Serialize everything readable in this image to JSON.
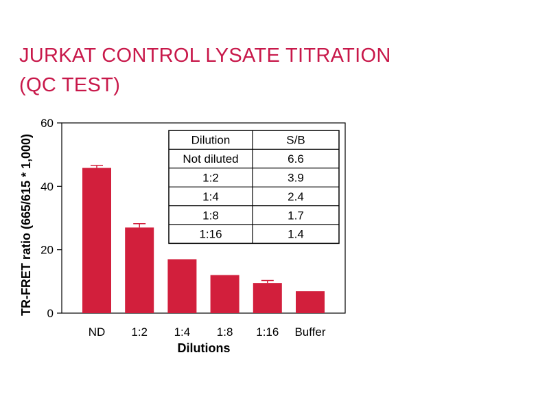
{
  "title_line1": "JURKAT CONTROL LYSATE TITRATION",
  "title_line2": "(QC TEST)",
  "chart_data": {
    "type": "bar",
    "categories": [
      "ND",
      "1:2",
      "1:4",
      "1:8",
      "1:16",
      "Buffer"
    ],
    "values": [
      45.8,
      27.0,
      17.0,
      12.0,
      9.5,
      6.9
    ],
    "errors": [
      0.8,
      1.2,
      0,
      0,
      0.8,
      0
    ],
    "xlabel": "Dilutions",
    "ylabel": "TR-FRET ratio (665/615 * 1,000)",
    "ylim": [
      0,
      60
    ],
    "yticks": [
      0,
      20,
      40,
      60
    ],
    "bar_color": "#d21f3c",
    "grid": false,
    "table": {
      "headers": [
        "Dilution",
        "S/B"
      ],
      "rows": [
        [
          "Not diluted",
          "6.6"
        ],
        [
          "1:2",
          "3.9"
        ],
        [
          "1:4",
          "2.4"
        ],
        [
          "1:8",
          "1.7"
        ],
        [
          "1:16",
          "1.4"
        ]
      ]
    }
  }
}
